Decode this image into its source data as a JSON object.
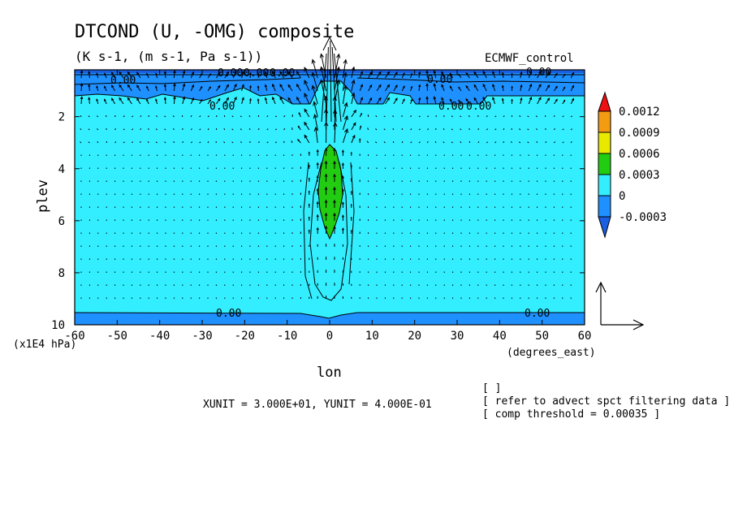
{
  "chart_data": {
    "type": "contour-vector",
    "title": "DTCOND (U, -OMG) composite",
    "subtitle": "(K s-1, (m s-1, Pa s-1))",
    "dataset": "ECMWF_control",
    "xlabel": "lon",
    "xunits": "(degrees_east)",
    "ylabel": "plev",
    "yunits": "(x1E4 hPa)",
    "xlim": [
      -60,
      60
    ],
    "ylim": [
      10,
      0.2
    ],
    "xticks": [
      -60,
      -50,
      -40,
      -30,
      -20,
      -10,
      0,
      10,
      20,
      30,
      40,
      50,
      60
    ],
    "yticks": [
      2,
      4,
      6,
      8,
      10
    ],
    "colorbar": {
      "levels": [
        "0.0012",
        "0.0009",
        "0.0006",
        "0.0003",
        "0",
        "-0.0003"
      ],
      "colors": {
        "above": "#ee1111",
        "l0009_0012": "#f39c12",
        "l0006_0009": "#e8e800",
        "l0003_0006": "#22cc11",
        "l0_0003": "#33eeff",
        "lneg_0": "#1e90ff",
        "below": "#1a5fe0"
      }
    },
    "contour_labels": [
      "0.00",
      "0.00",
      "0.00",
      "0.00",
      "0.00",
      "0.00",
      "0.00",
      "0.00",
      "0.00",
      "0.00",
      "0.00"
    ],
    "unit_vector": "XUNIT = 3.000E+01, YUNIT = 4.000E-01",
    "notes": [
      "[  ]",
      "[ refer to advect spct filtering data ]",
      "[ comp threshold = 0.00035 ]"
    ]
  }
}
